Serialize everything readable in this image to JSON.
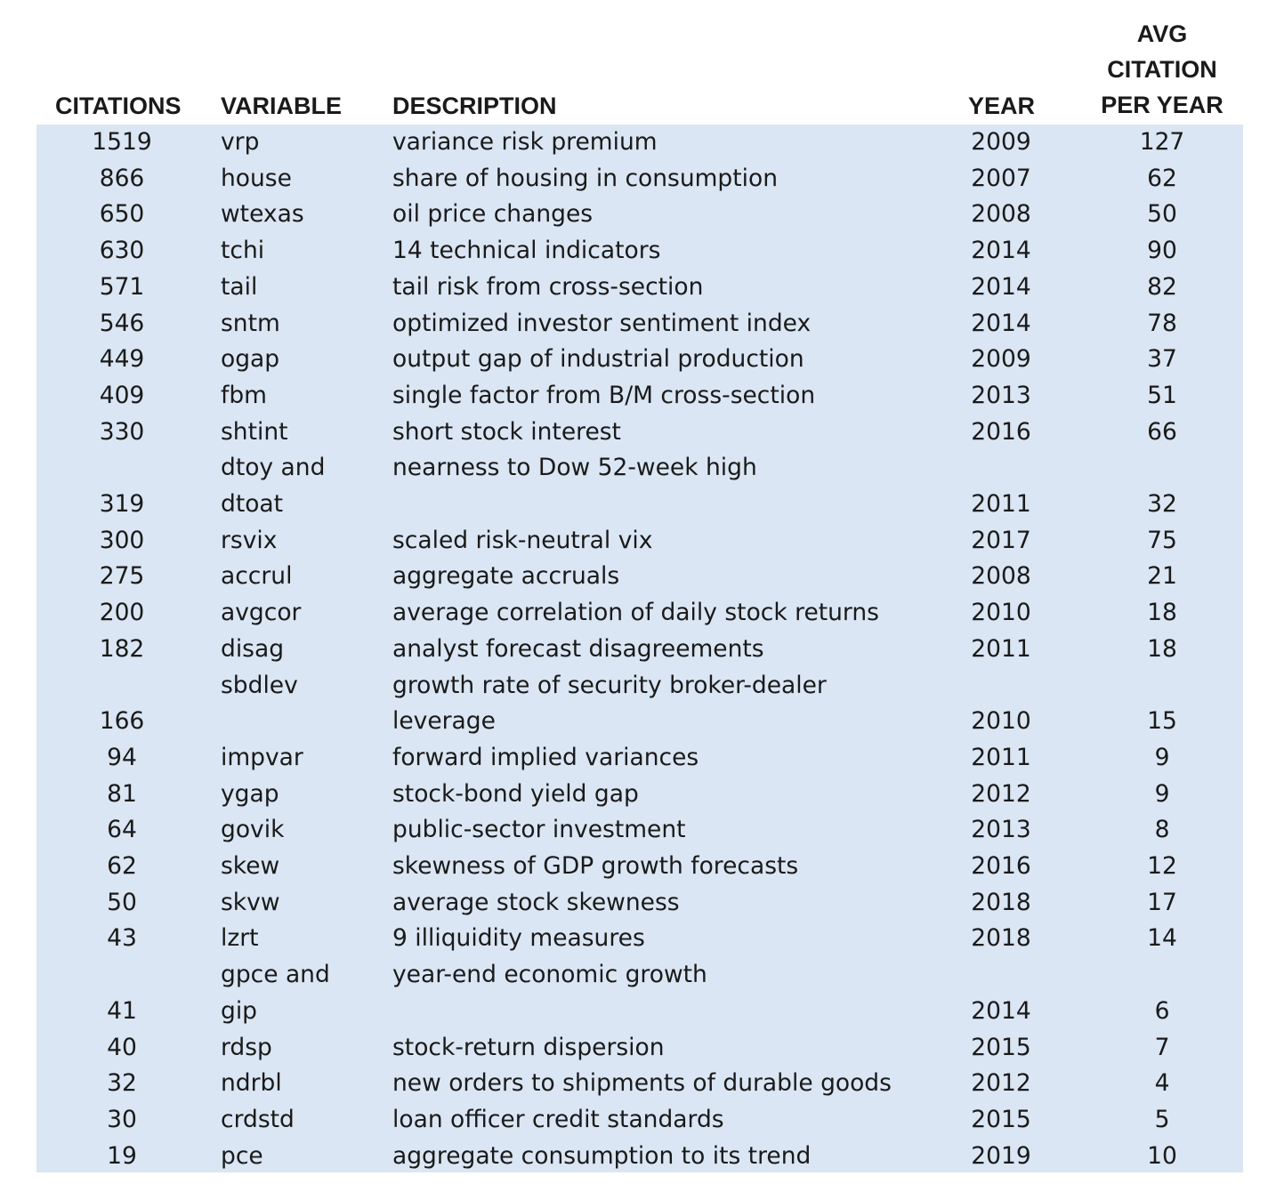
{
  "headers": {
    "citations": "CITATIONS",
    "variable": "VARIABLE",
    "description": "DESCRIPTION",
    "year": "YEAR",
    "avg_line1": "AVG",
    "avg_line2": "CITATION",
    "avg_line3": "PER YEAR"
  },
  "rows": [
    {
      "citations": "1519",
      "variable": [
        "vrp"
      ],
      "description": [
        "variance risk premium"
      ],
      "year": "2009",
      "avg": "127"
    },
    {
      "citations": "866",
      "variable": [
        "house"
      ],
      "description": [
        "share of housing in consumption"
      ],
      "year": "2007",
      "avg": "62"
    },
    {
      "citations": "650",
      "variable": [
        "wtexas"
      ],
      "description": [
        "oil price changes"
      ],
      "year": "2008",
      "avg": "50"
    },
    {
      "citations": "630",
      "variable": [
        "tchi"
      ],
      "description": [
        "14 technical indicators"
      ],
      "year": "2014",
      "avg": "90"
    },
    {
      "citations": "571",
      "variable": [
        "tail"
      ],
      "description": [
        "tail risk from cross-section"
      ],
      "year": "2014",
      "avg": "82"
    },
    {
      "citations": "546",
      "variable": [
        "sntm"
      ],
      "description": [
        "optimized investor sentiment index"
      ],
      "year": "2014",
      "avg": "78"
    },
    {
      "citations": "449",
      "variable": [
        "ogap"
      ],
      "description": [
        "output gap of industrial production"
      ],
      "year": "2009",
      "avg": "37"
    },
    {
      "citations": "409",
      "variable": [
        "fbm"
      ],
      "description": [
        "single factor from B/M cross-section"
      ],
      "year": "2013",
      "avg": "51"
    },
    {
      "citations": "330",
      "variable": [
        "shtint"
      ],
      "description": [
        "short stock interest"
      ],
      "year": "2016",
      "avg": "66"
    },
    {
      "citations": "319",
      "variable": [
        "dtoy and",
        "dtoat"
      ],
      "description": [
        "nearness to Dow 52-week high"
      ],
      "year": "2011",
      "avg": "32"
    },
    {
      "citations": "300",
      "variable": [
        "rsvix"
      ],
      "description": [
        "scaled risk-neutral vix"
      ],
      "year": "2017",
      "avg": "75"
    },
    {
      "citations": "275",
      "variable": [
        "accrul"
      ],
      "description": [
        "aggregate accruals"
      ],
      "year": "2008",
      "avg": "21"
    },
    {
      "citations": "200",
      "variable": [
        "avgcor"
      ],
      "description": [
        "average correlation of daily stock returns"
      ],
      "year": "2010",
      "avg": "18"
    },
    {
      "citations": "182",
      "variable": [
        "disag"
      ],
      "description": [
        "analyst forecast disagreements"
      ],
      "year": "2011",
      "avg": "18"
    },
    {
      "citations": "166",
      "variable": [
        "sbdlev"
      ],
      "description": [
        "growth rate of security broker-dealer",
        "leverage"
      ],
      "year": "2010",
      "avg": "15"
    },
    {
      "citations": "94",
      "variable": [
        "impvar"
      ],
      "description": [
        "forward implied variances"
      ],
      "year": "2011",
      "avg": "9"
    },
    {
      "citations": "81",
      "variable": [
        "ygap"
      ],
      "description": [
        "stock-bond yield gap"
      ],
      "year": "2012",
      "avg": "9"
    },
    {
      "citations": "64",
      "variable": [
        "govik"
      ],
      "description": [
        "public-sector investment"
      ],
      "year": "2013",
      "avg": "8"
    },
    {
      "citations": "62",
      "variable": [
        "skew"
      ],
      "description": [
        "skewness of GDP growth forecasts"
      ],
      "year": "2016",
      "avg": "12"
    },
    {
      "citations": "50",
      "variable": [
        "skvw"
      ],
      "description": [
        "average stock skewness"
      ],
      "year": "2018",
      "avg": "17"
    },
    {
      "citations": "43",
      "variable": [
        "lzrt"
      ],
      "description": [
        "9 illiquidity measures"
      ],
      "year": "2018",
      "avg": "14"
    },
    {
      "citations": "41",
      "variable": [
        "gpce and",
        "gip"
      ],
      "description": [
        "year-end economic growth"
      ],
      "year": "2014",
      "avg": "6"
    },
    {
      "citations": "40",
      "variable": [
        "rdsp"
      ],
      "description": [
        "stock-return dispersion"
      ],
      "year": "2015",
      "avg": "7"
    },
    {
      "citations": "32",
      "variable": [
        "ndrbl"
      ],
      "description": [
        "new orders to shipments of durable goods"
      ],
      "year": "2012",
      "avg": "4"
    },
    {
      "citations": "30",
      "variable": [
        "crdstd"
      ],
      "description": [
        "loan officer credit standards"
      ],
      "year": "2015",
      "avg": "5"
    },
    {
      "citations": "19",
      "variable": [
        "pce"
      ],
      "description": [
        "aggregate consumption to its trend"
      ],
      "year": "2019",
      "avg": "10"
    }
  ]
}
